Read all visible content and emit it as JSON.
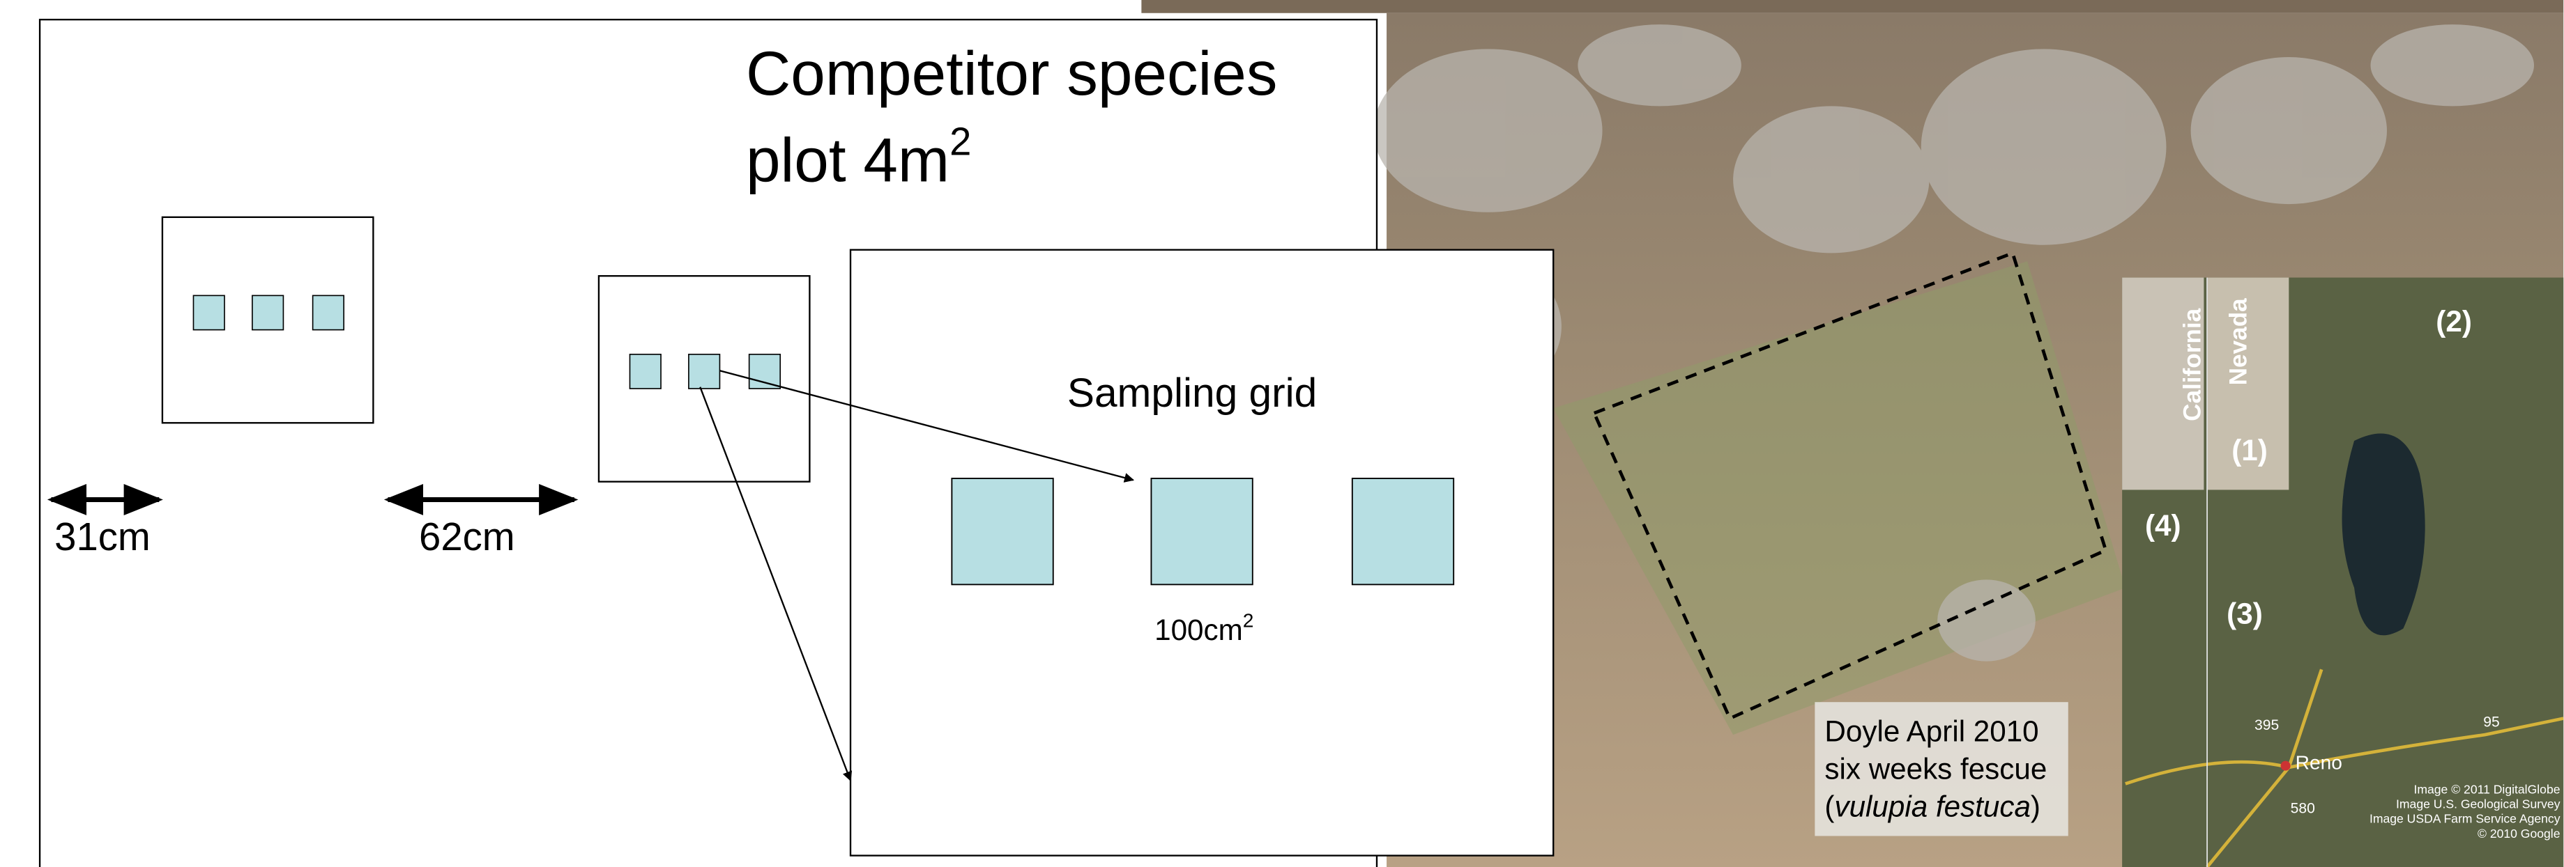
{
  "panel": {
    "title": "Competitor species",
    "title_line2": "plot 4m",
    "title_sup": "2"
  },
  "spacing": {
    "left": "31cm",
    "right": "62cm"
  },
  "grid": {
    "title": "Sampling grid",
    "area": "100cm",
    "area_sup": "2"
  },
  "photo": {
    "caption": [
      "Doyle April 2010",
      "six weeks fescue"
    ],
    "caption_open": "(",
    "caption_species": "vulupia festuca",
    "caption_close": ")"
  },
  "map": {
    "states": [
      "California",
      "Nevada"
    ],
    "markers": [
      "(1)",
      "(2)",
      "(3)",
      "(4)"
    ],
    "city": "Reno",
    "highways": [
      "395",
      "95",
      "580"
    ],
    "credits": [
      "Image © 2011 DigitalGlobe",
      "Image U.S. Geological Survey",
      "Image USDA Farm Service Agency",
      "© 2010 Google"
    ]
  }
}
